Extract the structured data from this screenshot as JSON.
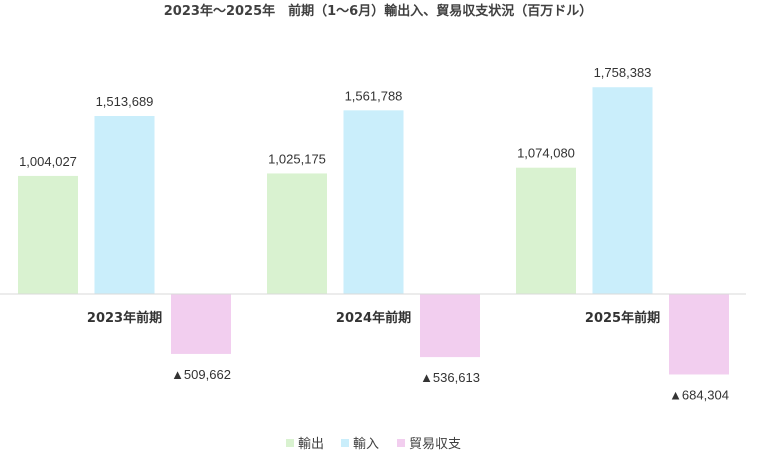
{
  "chart_data": {
    "type": "bar",
    "title": "2023年〜2025年　前期（1〜6月）輸出入、貿易収支状況（百万ドル）",
    "categories": [
      "2023年前期",
      "2024年前期",
      "2025年前期"
    ],
    "series": [
      {
        "name": "輸出",
        "values": [
          1004027,
          1025175,
          1074080
        ],
        "labels": [
          "1,004,027",
          "1,025,175",
          "1,074,080"
        ],
        "color": "#d9f2d0"
      },
      {
        "name": "輸入",
        "values": [
          1513689,
          1561788,
          1758383
        ],
        "labels": [
          "1,513,689",
          "1,561,788",
          "1,758,383"
        ],
        "color": "#caeefb"
      },
      {
        "name": "貿易収支",
        "values": [
          -509662,
          -536613,
          -684304
        ],
        "labels": [
          "▲509,662",
          "▲536,613",
          "▲684,304"
        ],
        "color": "#f2ceef"
      }
    ],
    "ylim": [
      -1000000,
      2000000
    ],
    "grid": false,
    "legend_position": "bottom",
    "axis_color": "#d9d9d9"
  }
}
